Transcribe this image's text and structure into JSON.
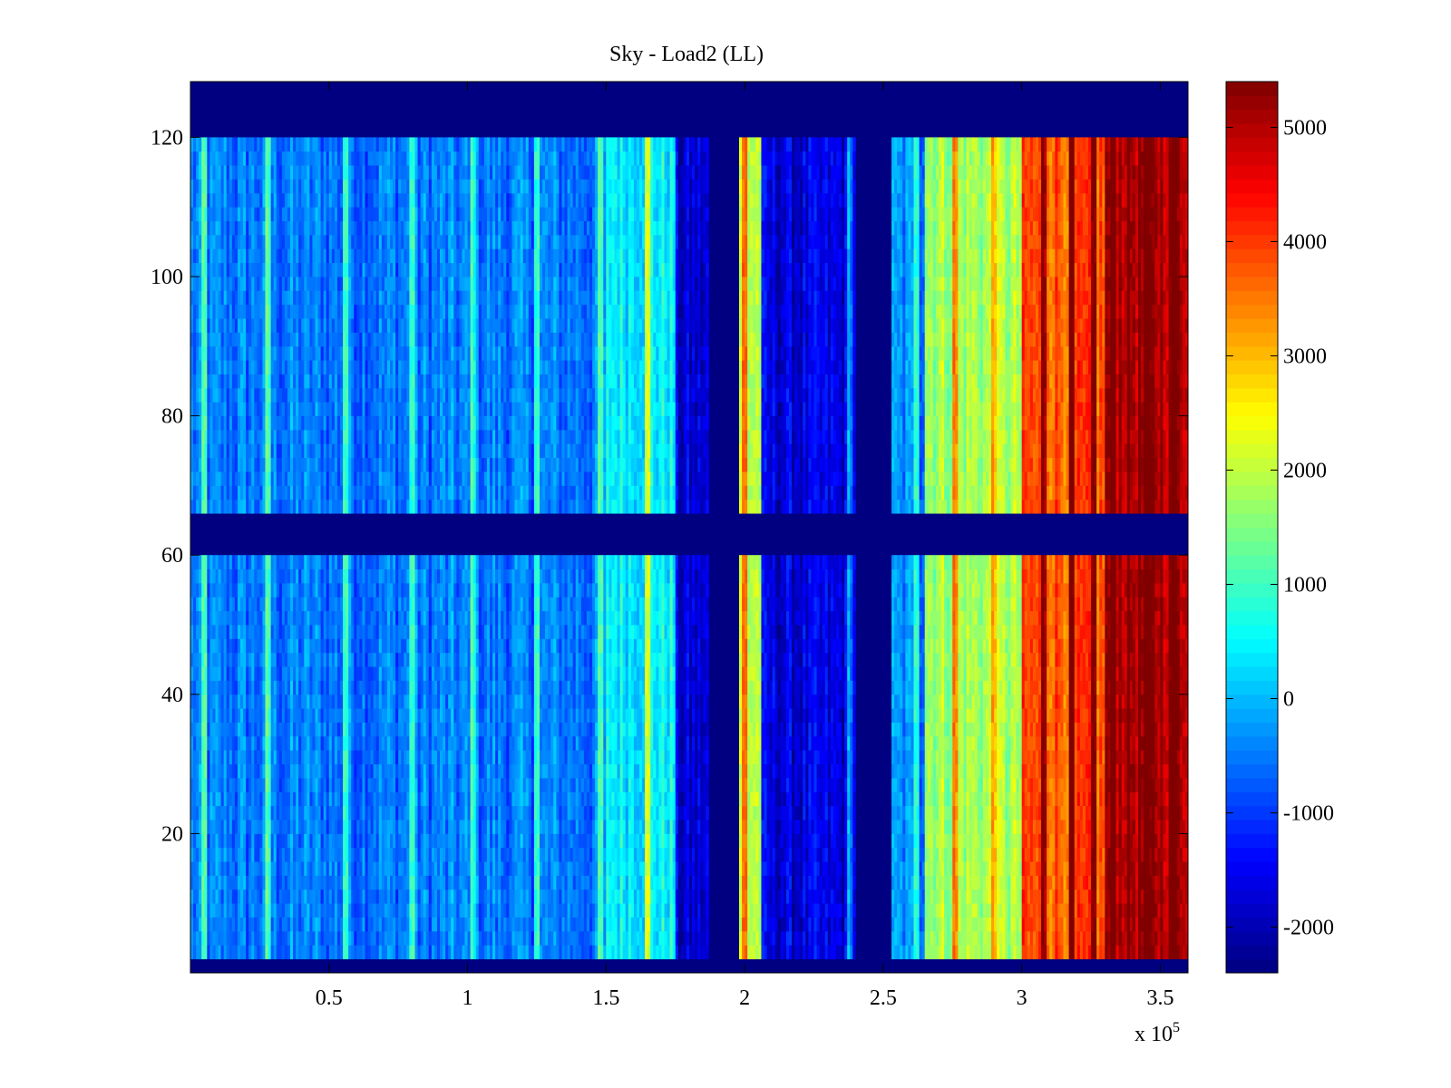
{
  "chart_data": {
    "type": "heatmap",
    "title": "Sky - Load2 (LL)",
    "xlabel": "",
    "ylabel": "",
    "x_multiplier_label": "x 10",
    "x_multiplier_exponent": "5",
    "x_range": [
      0,
      360000
    ],
    "y_range": [
      0,
      128
    ],
    "x_ticks": [
      {
        "value": 50000,
        "label": "0.5"
      },
      {
        "value": 100000,
        "label": "1"
      },
      {
        "value": 150000,
        "label": "1.5"
      },
      {
        "value": 200000,
        "label": "2"
      },
      {
        "value": 250000,
        "label": "2.5"
      },
      {
        "value": 300000,
        "label": "3"
      },
      {
        "value": 350000,
        "label": "3.5"
      }
    ],
    "y_ticks": [
      {
        "value": 20,
        "label": "20"
      },
      {
        "value": 40,
        "label": "40"
      },
      {
        "value": 60,
        "label": "60"
      },
      {
        "value": 80,
        "label": "80"
      },
      {
        "value": 100,
        "label": "100"
      },
      {
        "value": 120,
        "label": "120"
      }
    ],
    "colormap": "jet",
    "colorbar": {
      "range": [
        -2400,
        5400
      ],
      "ticks": [
        {
          "value": -2000,
          "label": "-2000"
        },
        {
          "value": -1000,
          "label": "-1000"
        },
        {
          "value": 0,
          "label": "0"
        },
        {
          "value": 1000,
          "label": "1000"
        },
        {
          "value": 2000,
          "label": "2000"
        },
        {
          "value": 3000,
          "label": "3000"
        },
        {
          "value": 4000,
          "label": "4000"
        },
        {
          "value": 5000,
          "label": "5000"
        }
      ]
    },
    "masked_value": -2400,
    "masked_rows": [
      [
        0,
        3
      ],
      [
        61,
        67
      ],
      [
        121,
        128
      ]
    ],
    "masked_columns": [
      [
        187000,
        198000
      ],
      [
        240000,
        253000
      ]
    ],
    "column_segments": [
      {
        "x": [
          0,
          150000
        ],
        "mean": -500
      },
      {
        "x": [
          150000,
          175000
        ],
        "mean": 500
      },
      {
        "x": [
          175000,
          187000
        ],
        "mean": -1800
      },
      {
        "x": [
          198000,
          206000
        ],
        "mean": 2000
      },
      {
        "x": [
          206000,
          240000
        ],
        "mean": -1700
      },
      {
        "x": [
          253000,
          265000
        ],
        "mean": -400
      },
      {
        "x": [
          265000,
          300000
        ],
        "mean": 1800
      },
      {
        "x": [
          300000,
          330000
        ],
        "mean": 3800
      },
      {
        "x": [
          330000,
          360000
        ],
        "mean": 5200
      }
    ],
    "bright_lines": [
      5000,
      28000,
      56000,
      80000,
      102000,
      125000,
      148000,
      165000,
      200000,
      238000,
      262000,
      276000,
      290000,
      308000,
      318000,
      326000,
      333000,
      345000,
      355000
    ],
    "grid": false
  }
}
